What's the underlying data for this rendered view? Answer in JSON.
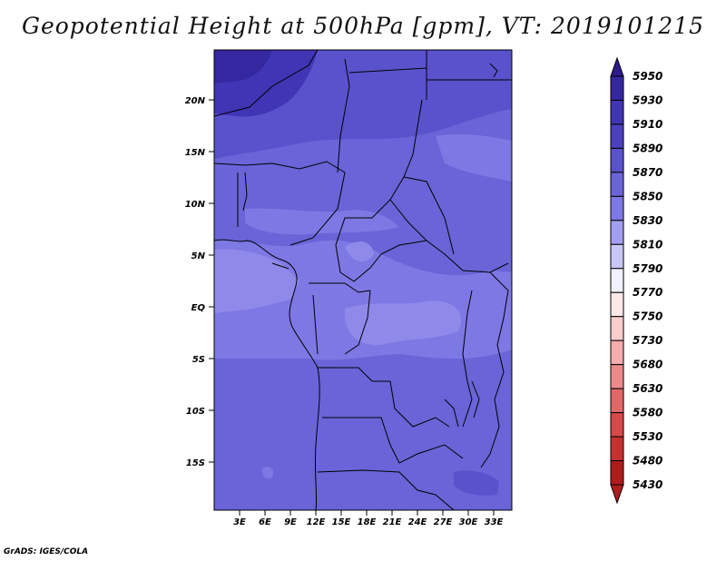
{
  "title": "Geopotential Height at 500hPa [gpm], VT: 2019101215",
  "credit": "GrADS: IGES/COLA",
  "map": {
    "lat_labels": [
      "20N",
      "15N",
      "10N",
      "5N",
      "EQ",
      "5S",
      "10S",
      "15S"
    ],
    "lon_labels": [
      "3E",
      "6E",
      "9E",
      "12E",
      "15E",
      "18E",
      "21E",
      "24E",
      "27E",
      "30E",
      "33E"
    ]
  },
  "colorbar": {
    "levels": [
      "5950",
      "5930",
      "5910",
      "5890",
      "5870",
      "5850",
      "5830",
      "5810",
      "5790",
      "5770",
      "5750",
      "5730",
      "5680",
      "5630",
      "5580",
      "5530",
      "5480",
      "5430"
    ],
    "colors": [
      "#2e1a8c",
      "#3527a0",
      "#4035b4",
      "#4a40c0",
      "#5a52cc",
      "#6a64d8",
      "#7e78e4",
      "#a39ff0",
      "#c9c7f8",
      "#f0f0ff",
      "#ffe8e8",
      "#fbcccc",
      "#f4acac",
      "#ec8a8a",
      "#e26767",
      "#d84848",
      "#c83030",
      "#b01c1c"
    ]
  }
}
